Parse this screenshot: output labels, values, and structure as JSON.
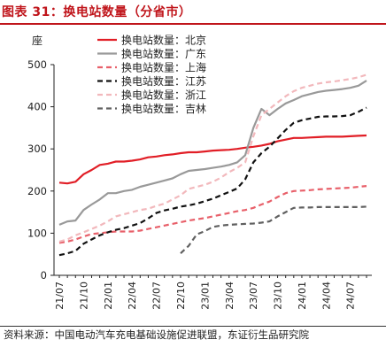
{
  "header": {
    "title": "图表 31：换电站数量（分省市）"
  },
  "source_note": "资料来源：中国电动汽车充电基础设施促进联盟，东证衍生品研究院",
  "colors": {
    "title_red": "#c0151b",
    "series": [
      "#e11e26",
      "#999999",
      "#e8606a",
      "#111111",
      "#f2b8bc",
      "#606060"
    ]
  },
  "chart_data": {
    "type": "line",
    "title": "",
    "ylabel": "座",
    "xlabel": "",
    "ylim": [
      0,
      500
    ],
    "yticks": [
      0,
      100,
      200,
      300,
      400,
      500
    ],
    "grid": false,
    "legend_position": "top-left",
    "x": [
      "21/07",
      "21/08",
      "21/09",
      "21/10",
      "21/11",
      "21/12",
      "22/01",
      "22/02",
      "22/03",
      "22/04",
      "22/05",
      "22/06",
      "22/07",
      "22/08",
      "22/09",
      "22/10",
      "22/11",
      "22/12",
      "23/01",
      "23/02",
      "23/03",
      "23/04",
      "23/05",
      "23/06",
      "23/07",
      "23/08",
      "23/09",
      "23/10",
      "23/11",
      "23/12",
      "24/01",
      "24/02",
      "24/03",
      "24/04",
      "24/05",
      "24/06",
      "24/07",
      "24/08",
      "24/09"
    ],
    "xtick_labels": [
      "21/07",
      "21/10",
      "22/01",
      "22/04",
      "22/07",
      "22/10",
      "23/01",
      "23/04",
      "23/07",
      "23/10",
      "24/01",
      "24/04",
      "24/07"
    ],
    "series": [
      {
        "name": "换电站数量：北京",
        "style": "solid",
        "values": [
          220,
          218,
          222,
          240,
          250,
          262,
          265,
          270,
          270,
          272,
          275,
          280,
          282,
          285,
          287,
          290,
          292,
          292,
          294,
          296,
          297,
          298,
          300,
          303,
          305,
          308,
          312,
          318,
          322,
          326,
          326,
          327,
          328,
          329,
          329,
          329,
          330,
          331,
          332
        ]
      },
      {
        "name": "换电站数量：广东",
        "style": "solid",
        "values": [
          120,
          128,
          130,
          155,
          168,
          180,
          195,
          195,
          200,
          203,
          210,
          215,
          220,
          225,
          230,
          240,
          248,
          250,
          252,
          255,
          258,
          262,
          268,
          285,
          350,
          395,
          380,
          395,
          408,
          416,
          425,
          430,
          435,
          438,
          440,
          442,
          445,
          450,
          462
        ]
      },
      {
        "name": "换电站数量：上海",
        "style": "dashed",
        "values": [
          77,
          80,
          85,
          92,
          98,
          100,
          102,
          104,
          104,
          104,
          106,
          110,
          114,
          118,
          122,
          126,
          130,
          133,
          136,
          140,
          144,
          148,
          152,
          155,
          160,
          168,
          175,
          186,
          195,
          200,
          201,
          202,
          204,
          205,
          206,
          207,
          208,
          210,
          212
        ]
      },
      {
        "name": "换电站数量：江苏",
        "style": "dashed",
        "values": [
          48,
          52,
          58,
          75,
          85,
          95,
          102,
          108,
          112,
          118,
          124,
          135,
          148,
          154,
          158,
          163,
          166,
          170,
          176,
          182,
          190,
          198,
          206,
          228,
          268,
          290,
          305,
          325,
          345,
          362,
          368,
          372,
          376,
          377,
          377,
          378,
          380,
          388,
          398
        ]
      },
      {
        "name": "换电站数量：浙江",
        "style": "dashed",
        "values": [
          80,
          85,
          95,
          102,
          110,
          118,
          128,
          140,
          145,
          150,
          155,
          158,
          165,
          170,
          180,
          190,
          205,
          210,
          215,
          222,
          232,
          245,
          255,
          268,
          330,
          380,
          395,
          410,
          425,
          437,
          445,
          450,
          455,
          458,
          460,
          463,
          466,
          470,
          476
        ]
      },
      {
        "name": "换电站数量：吉林",
        "style": "dashed",
        "values": [
          null,
          null,
          null,
          null,
          null,
          null,
          null,
          null,
          null,
          null,
          null,
          null,
          null,
          null,
          null,
          52,
          70,
          97,
          105,
          115,
          118,
          120,
          121,
          122,
          123,
          125,
          128,
          140,
          150,
          160,
          161,
          161,
          162,
          162,
          162,
          162,
          162,
          162,
          163
        ]
      }
    ]
  }
}
